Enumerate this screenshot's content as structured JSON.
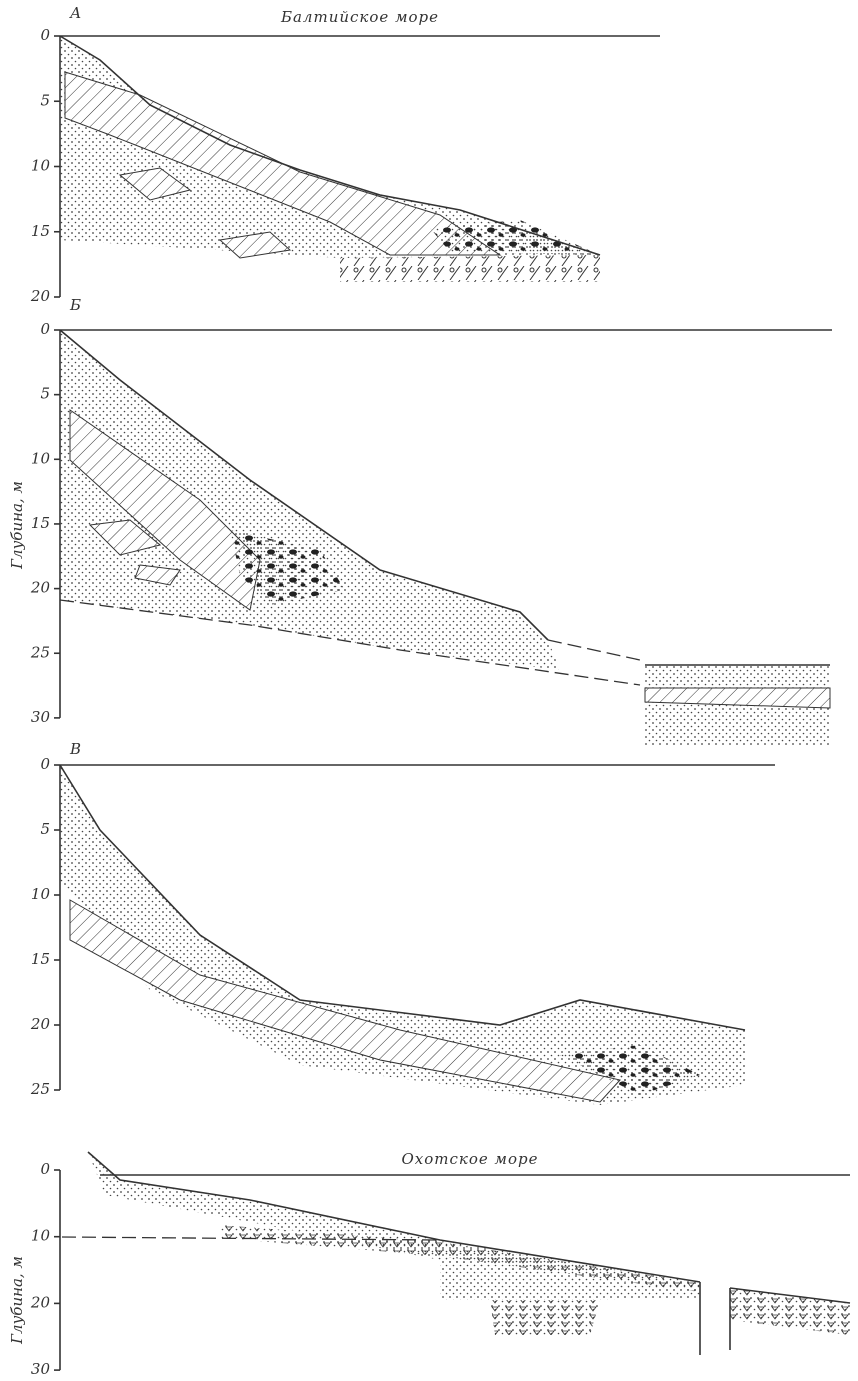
{
  "panels": [
    {
      "label": "А",
      "title": "Балтийское море",
      "ticks": [
        0,
        5,
        10,
        15,
        20
      ]
    },
    {
      "label": "Б",
      "y_label": "Глубина, м",
      "ticks": [
        0,
        5,
        10,
        15,
        20,
        25,
        30
      ]
    },
    {
      "label": "В",
      "ticks": [
        0,
        5,
        10,
        15,
        20,
        25
      ]
    },
    {
      "title": "Охотское море",
      "y_label": "Глубина, м",
      "ticks": [
        0,
        10,
        20,
        30
      ]
    }
  ]
}
